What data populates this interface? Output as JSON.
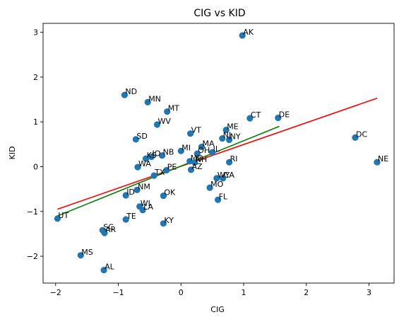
{
  "chart_data": {
    "type": "scatter",
    "title": "CIG vs KID",
    "xlabel": "CIG",
    "ylabel": "KID",
    "xlim": [
      -2.2,
      3.4
    ],
    "ylim": [
      -2.6,
      3.2
    ],
    "xticks": [
      -2,
      -1,
      0,
      1,
      2,
      3
    ],
    "yticks": [
      -2,
      -1,
      0,
      1,
      2,
      3
    ],
    "grid": false,
    "point_color": "#1f77b4",
    "points": [
      {
        "label": "AK",
        "x": 0.98,
        "y": 2.93
      },
      {
        "label": "ND",
        "x": -0.9,
        "y": 1.6
      },
      {
        "label": "MN",
        "x": -0.53,
        "y": 1.44
      },
      {
        "label": "MT",
        "x": -0.22,
        "y": 1.23
      },
      {
        "label": "WV",
        "x": -0.38,
        "y": 0.94
      },
      {
        "label": "CT",
        "x": 1.1,
        "y": 1.08
      },
      {
        "label": "DE",
        "x": 1.55,
        "y": 1.09
      },
      {
        "label": "DC",
        "x": 2.78,
        "y": 0.65
      },
      {
        "label": "NE",
        "x": 3.13,
        "y": 0.1
      },
      {
        "label": "SD",
        "x": -0.72,
        "y": 0.61
      },
      {
        "label": "VT",
        "x": 0.15,
        "y": 0.74
      },
      {
        "label": "ME",
        "x": 0.72,
        "y": 0.82
      },
      {
        "label": "NJ",
        "x": 0.66,
        "y": 0.63
      },
      {
        "label": "NY",
        "x": 0.77,
        "y": 0.6
      },
      {
        "label": "MA",
        "x": 0.33,
        "y": 0.44
      },
      {
        "label": "MI",
        "x": 0.0,
        "y": 0.35
      },
      {
        "label": "IL",
        "x": 0.5,
        "y": 0.32
      },
      {
        "label": "OH",
        "x": 0.26,
        "y": 0.29
      },
      {
        "label": "NB",
        "x": -0.3,
        "y": 0.25
      },
      {
        "label": "IO",
        "x": -0.47,
        "y": 0.22
      },
      {
        "label": "KS",
        "x": -0.56,
        "y": 0.18
      },
      {
        "label": "MD",
        "x": 0.14,
        "y": 0.12
      },
      {
        "label": "NH",
        "x": 0.22,
        "y": 0.09
      },
      {
        "label": "RI",
        "x": 0.77,
        "y": 0.1
      },
      {
        "label": "WA",
        "x": -0.69,
        "y": -0.01
      },
      {
        "label": "AZ",
        "x": 0.16,
        "y": -0.07
      },
      {
        "label": "PE",
        "x": -0.23,
        "y": -0.08
      },
      {
        "label": "TX",
        "x": -0.43,
        "y": -0.2
      },
      {
        "label": "WY",
        "x": 0.57,
        "y": -0.26
      },
      {
        "label": "CA",
        "x": 0.67,
        "y": -0.26
      },
      {
        "label": "MO",
        "x": 0.46,
        "y": -0.47
      },
      {
        "label": "NM",
        "x": -0.7,
        "y": -0.52
      },
      {
        "label": "ID",
        "x": -0.88,
        "y": -0.64
      },
      {
        "label": "OK",
        "x": -0.28,
        "y": -0.65
      },
      {
        "label": "FL",
        "x": 0.59,
        "y": -0.74
      },
      {
        "label": "WI",
        "x": -0.66,
        "y": -0.89
      },
      {
        "label": "LA",
        "x": -0.61,
        "y": -0.97
      },
      {
        "label": "UT",
        "x": -1.97,
        "y": -1.16
      },
      {
        "label": "TE",
        "x": -0.88,
        "y": -1.18
      },
      {
        "label": "KY",
        "x": -0.28,
        "y": -1.27
      },
      {
        "label": "SC",
        "x": -1.25,
        "y": -1.42
      },
      {
        "label": "AR",
        "x": -1.22,
        "y": -1.48
      },
      {
        "label": "MS",
        "x": -1.6,
        "y": -1.98
      },
      {
        "label": "AL",
        "x": -1.23,
        "y": -2.31
      }
    ],
    "lines": [
      {
        "color": "#ff0000",
        "x": [
          -1.97,
          3.13
        ],
        "y": [
          -0.95,
          1.53
        ]
      },
      {
        "color": "#008000",
        "x": [
          -1.97,
          1.57
        ],
        "y": [
          -1.1,
          0.9
        ]
      }
    ]
  }
}
